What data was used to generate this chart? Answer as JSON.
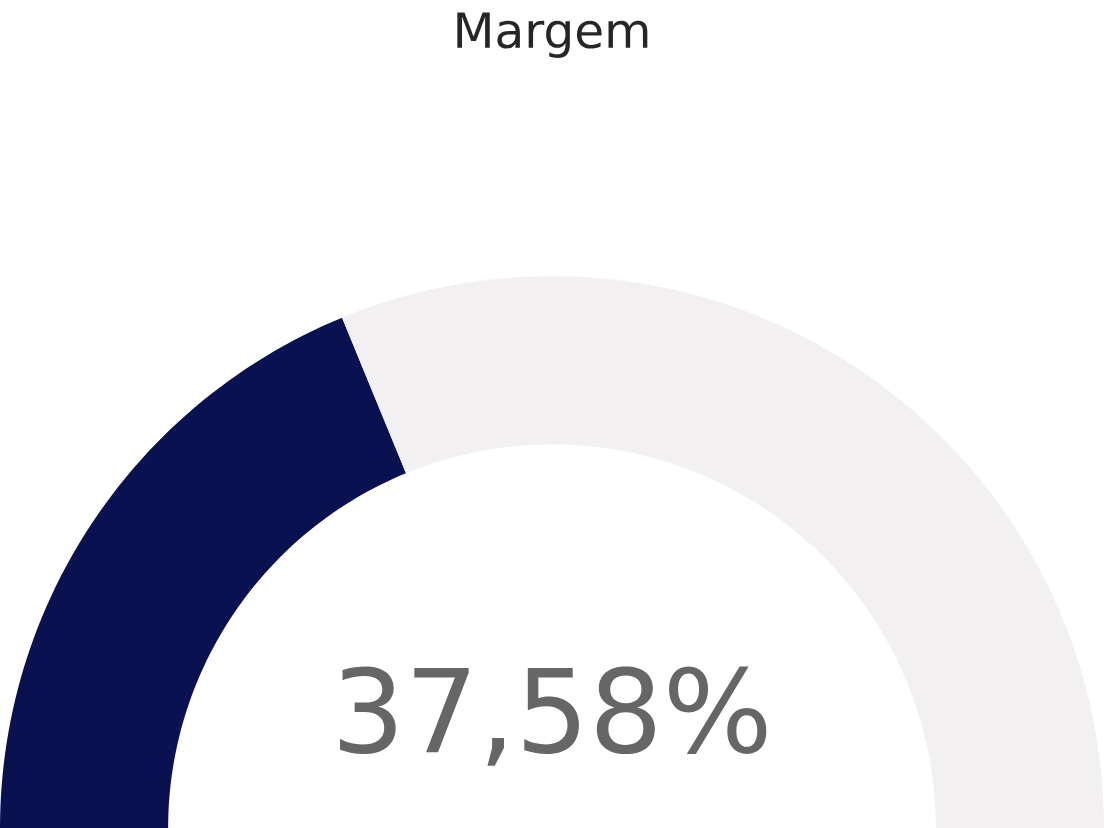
{
  "chart_data": {
    "type": "donut",
    "title": "Margem",
    "categories": [
      null,
      null
    ],
    "values": [
      37.58,
      62.42
    ],
    "colors": [
      "#0a1150",
      "#f2f0f0"
    ],
    "annotations": [
      "37,58%"
    ]
  }
}
